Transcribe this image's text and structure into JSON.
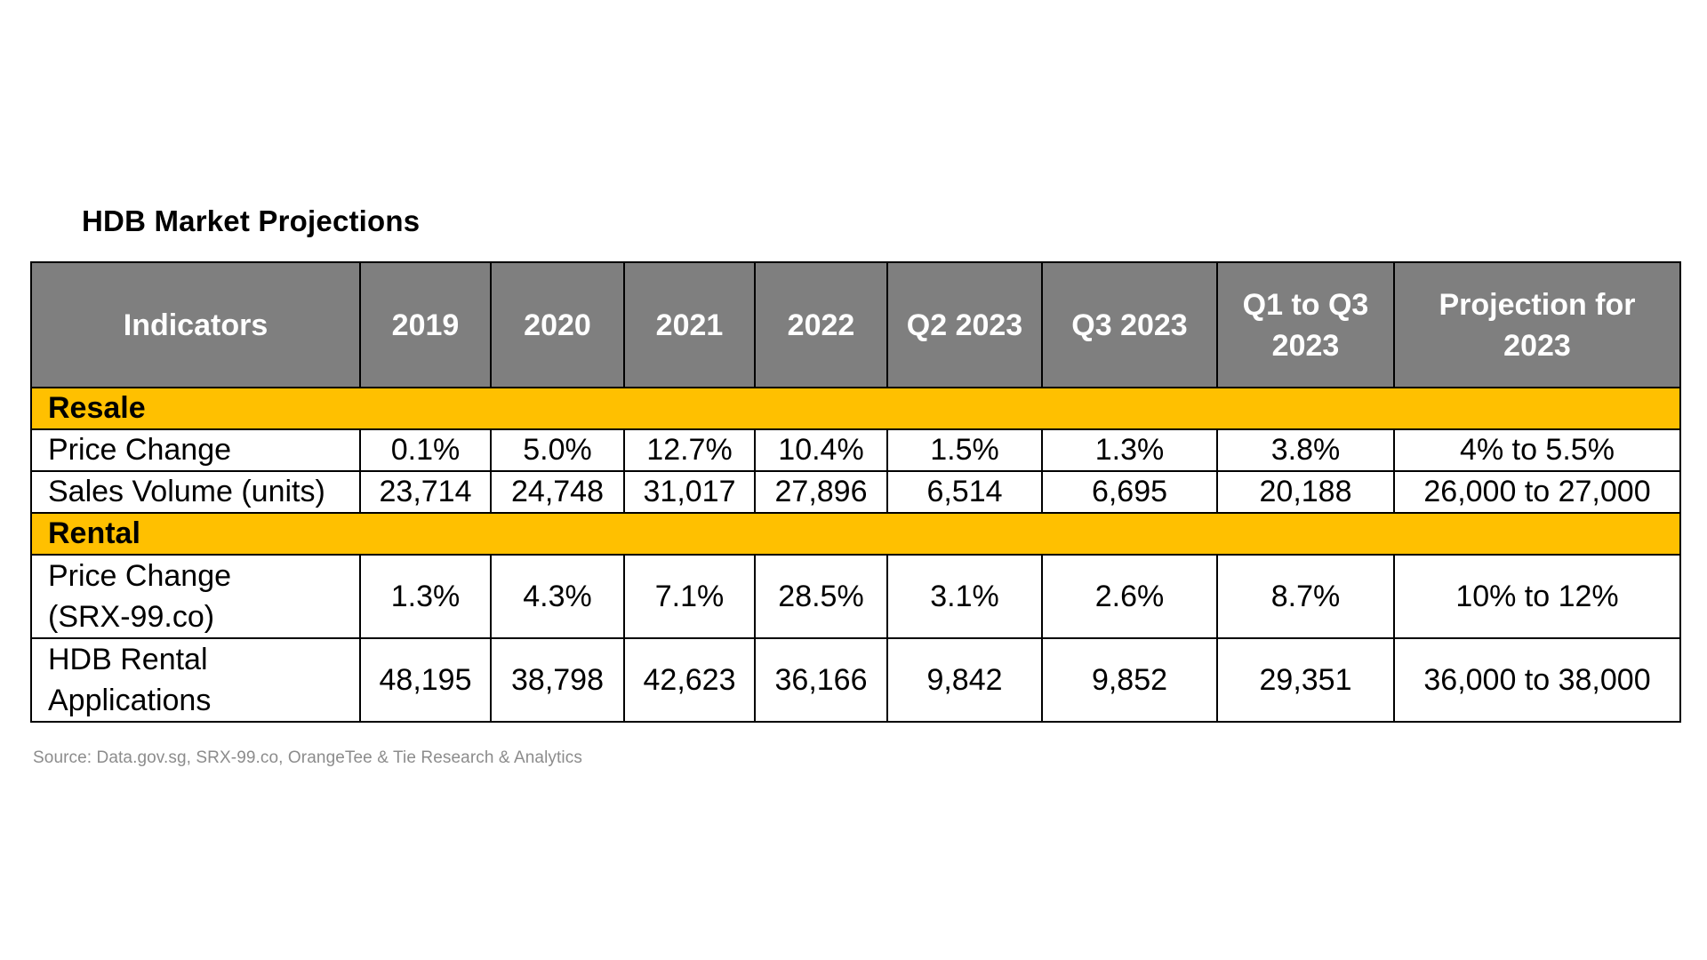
{
  "title": "HDB Market Projections",
  "table": {
    "headers": [
      "Indicators",
      "2019",
      "2020",
      "2021",
      "2022",
      "Q2 2023",
      "Q3 2023",
      "Q1 to Q3 2023",
      "Projection for 2023"
    ],
    "sections": [
      {
        "name": "Resale",
        "rows": [
          {
            "indicator": "Price Change",
            "values": [
              "0.1%",
              "5.0%",
              "12.7%",
              "10.4%",
              "1.5%",
              "1.3%",
              "3.8%",
              "4% to 5.5%"
            ]
          },
          {
            "indicator": "Sales Volume (units)",
            "values": [
              "23,714",
              "24,748",
              "31,017",
              "27,896",
              "6,514",
              "6,695",
              "20,188",
              "26,000 to 27,000"
            ]
          }
        ]
      },
      {
        "name": "Rental",
        "rows": [
          {
            "indicator": "Price Change (SRX-99.co)",
            "values": [
              "1.3%",
              "4.3%",
              "7.1%",
              "28.5%",
              "3.1%",
              "2.6%",
              "8.7%",
              "10% to 12%"
            ]
          },
          {
            "indicator": "HDB Rental Applications",
            "values": [
              "48,195",
              "38,798",
              "42,623",
              "36,166",
              "9,842",
              "9,852",
              "29,351",
              "36,000 to 38,000"
            ]
          }
        ]
      }
    ]
  },
  "source": "Source: Data.gov.sg, SRX-99.co, OrangeTee & Tie Research & Analytics",
  "colors": {
    "header_bg": "#7f7f7f",
    "section_bg": "#ffc000",
    "source_text": "#8c8c8c"
  }
}
